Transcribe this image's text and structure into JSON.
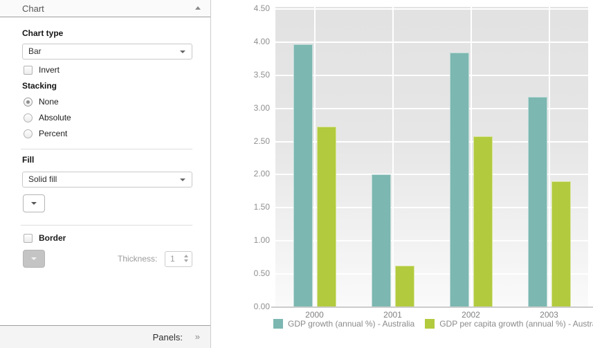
{
  "sidebar": {
    "header": {
      "title": "Chart"
    },
    "chart_type": {
      "label": "Chart type",
      "value": "Bar"
    },
    "invert": {
      "label": "Invert",
      "checked": false
    },
    "stacking": {
      "label": "Stacking",
      "options": [
        {
          "label": "None",
          "selected": true
        },
        {
          "label": "Absolute",
          "selected": false
        },
        {
          "label": "Percent",
          "selected": false
        }
      ]
    },
    "fill": {
      "label": "Fill",
      "value": "Solid fill"
    },
    "border": {
      "label": "Border",
      "checked": false,
      "thickness_label": "Thickness:",
      "thickness_value": "1"
    },
    "footer": {
      "label": "Panels:",
      "expand_icon": "»"
    }
  },
  "chart_data": {
    "type": "bar",
    "categories": [
      "2000",
      "2001",
      "2002",
      "2003"
    ],
    "series": [
      {
        "name": "GDP growth (annual %) - Australia",
        "color": "#7cb7b1",
        "values": [
          3.97,
          2.0,
          3.84,
          3.17
        ]
      },
      {
        "name": "GDP per capita growth (annual %) - Australia",
        "color": "#b2ca3e",
        "values": [
          2.73,
          0.63,
          2.58,
          1.9
        ]
      }
    ],
    "ylim": [
      0,
      4.5
    ],
    "ytick_step": 0.5,
    "yticks": [
      "4.50",
      "4.00",
      "3.50",
      "3.00",
      "2.50",
      "2.00",
      "1.50",
      "1.00",
      "0.50",
      "0.00"
    ],
    "grid": true,
    "legend_position": "bottom",
    "plot_background": [
      "#e2e2e2",
      "#fafafa"
    ],
    "gridline_color": "#ffffff",
    "axis_line_color": "#cccccc"
  }
}
